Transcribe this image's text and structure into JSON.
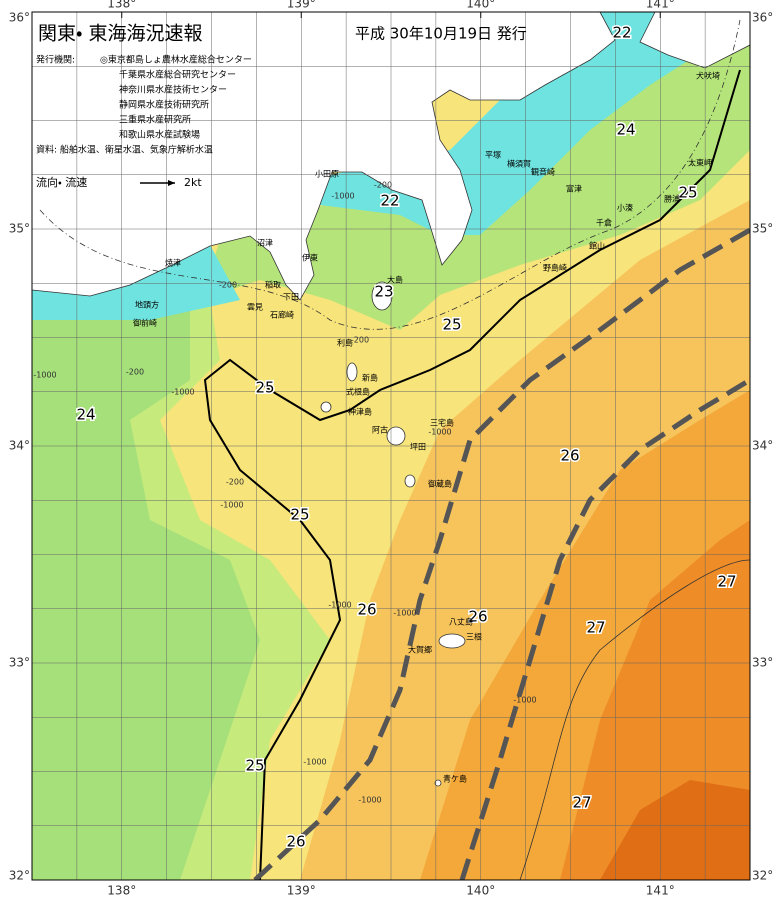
{
  "header": {
    "title": "関東・ 東海海況速報",
    "date": "平成 30年10月19日 発行"
  },
  "issuers": {
    "label": "発行機関:",
    "items": [
      "◎東京都島しょ農林水産総合センター",
      "千葉県水産総合研究センター",
      "神奈川県水産技術センター",
      "静岡県水産技術研究所",
      "三重県水産研究所",
      "和歌山県水産試験場"
    ]
  },
  "sources": "資料: 船舶水温、衛星水温、気象庁解析水温",
  "legend": {
    "label": "流向・ 流速",
    "speed": "2kt"
  },
  "axes": {
    "lon_ticks": [
      {
        "value": 138,
        "label": "138°"
      },
      {
        "value": 139,
        "label": "139°"
      },
      {
        "value": 140,
        "label": "140°"
      },
      {
        "value": 141,
        "label": "141°"
      }
    ],
    "lat_ticks": [
      {
        "value": 36,
        "label": "36°"
      },
      {
        "value": 35,
        "label": "35°"
      },
      {
        "value": 34,
        "label": "34°"
      },
      {
        "value": 33,
        "label": "33°"
      },
      {
        "value": 32,
        "label": "32°"
      }
    ]
  },
  "isotherm_labels": [
    "22",
    "24",
    "25",
    "22",
    "23",
    "25",
    "25",
    "24",
    "26",
    "25",
    "26",
    "26",
    "27",
    "27",
    "25",
    "27",
    "26"
  ],
  "place_names": [
    "犬吠埼",
    "太東岬",
    "勝浦",
    "小湊",
    "千倉",
    "館山",
    "野島崎",
    "富津",
    "観音崎",
    "横須賀",
    "平塚",
    "小田原",
    "伊東",
    "稲取",
    "下田",
    "雲見",
    "石廊崎",
    "沼津",
    "焼津",
    "地頭方",
    "御前崎",
    "大島",
    "利島",
    "新島",
    "式根島",
    "神津島",
    "三宅島",
    "阿古",
    "坪田",
    "御蔵島",
    "八丈島",
    "三根",
    "大賀郷",
    "青ケ島"
  ],
  "depth_labels": [
    "-1000",
    "-200",
    "-200",
    "-1000",
    "-200",
    "-1000",
    "-200",
    "-200",
    "-1000",
    "-1000",
    "-1000",
    "-1000",
    "-1000",
    "-1000",
    "-1000"
  ]
}
